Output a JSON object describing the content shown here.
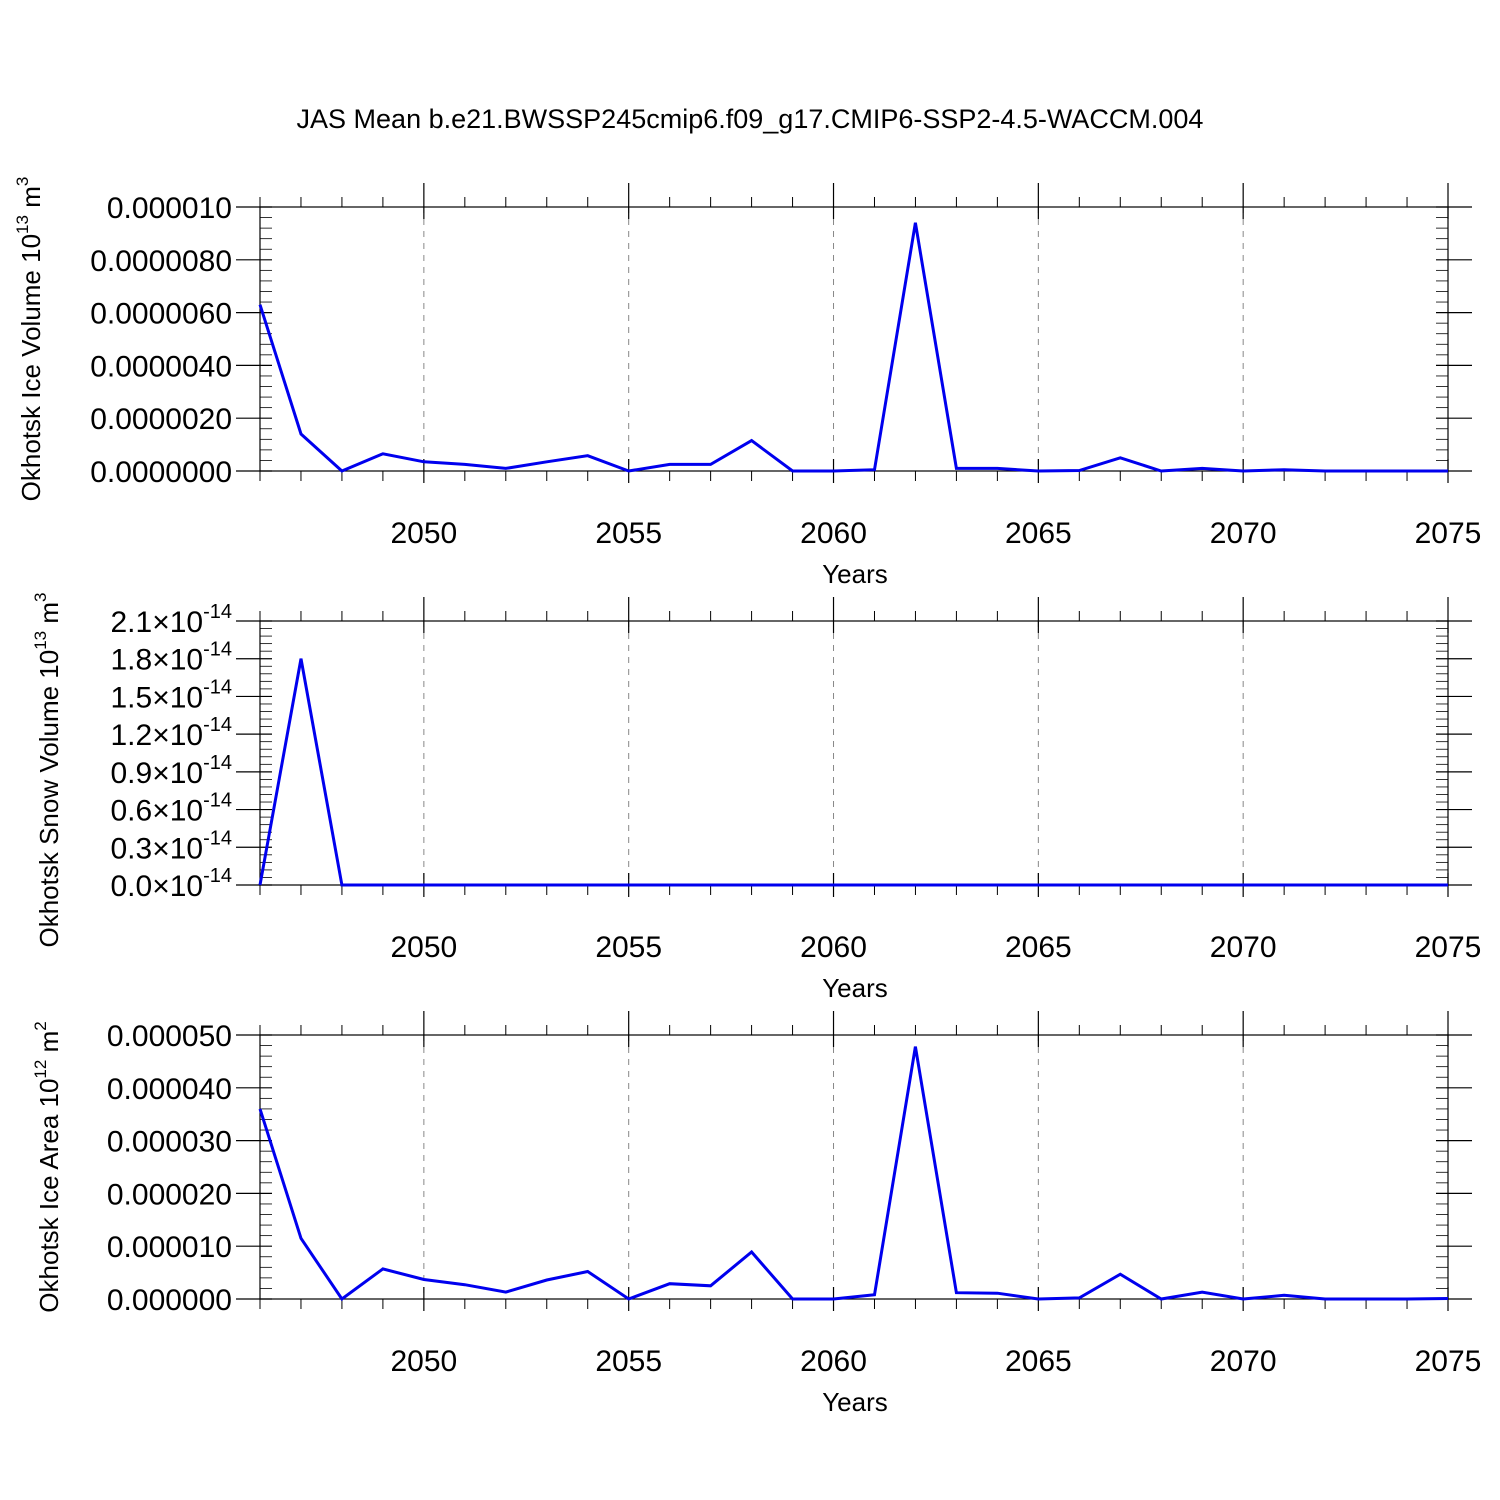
{
  "title": "JAS Mean b.e21.BWSSP245cmip6.f09_g17.CMIP6-SSP2-4.5-WACCM.004",
  "colors": {
    "line": "#0000ee",
    "axis": "#000000",
    "grid": "#888888"
  },
  "chart_data": [
    {
      "type": "line",
      "ylabel": "Okhotsk Ice Volume",
      "ylabel_unit_base": "10",
      "ylabel_unit_exp": "13",
      "ylabel_unit": "m",
      "ylabel_unit_power": "3",
      "xlabel": "Years",
      "xlim": [
        2046,
        2075
      ],
      "ylim": [
        0,
        1e-05
      ],
      "xticks": [
        2050,
        2055,
        2060,
        2065,
        2070,
        2075
      ],
      "ytick_labels": [
        "0.0000000",
        "0.0000020",
        "0.0000040",
        "0.0000060",
        "0.0000080",
        "0.000010"
      ],
      "ytick_values": [
        0,
        2e-06,
        4e-06,
        6e-06,
        8e-06,
        1e-05
      ],
      "grid": "vertical dashed at major x ticks",
      "series": [
        {
          "x": [
            2046,
            2047,
            2048,
            2049,
            2050,
            2051,
            2052,
            2053,
            2054,
            2055,
            2056,
            2057,
            2058,
            2059,
            2060,
            2061,
            2062,
            2063,
            2064,
            2065,
            2066,
            2067,
            2068,
            2069,
            2070,
            2071,
            2072,
            2073,
            2074,
            2075
          ],
          "values": [
            6.3e-06,
            1.4e-06,
            0.0,
            6.5e-07,
            3.5e-07,
            2.5e-07,
            1e-07,
            3.5e-07,
            5.8e-07,
            0.0,
            2.5e-07,
            2.5e-07,
            1.15e-06,
            0.0,
            0.0,
            5e-08,
            9.4e-06,
            1e-07,
            1e-07,
            0.0,
            2e-08,
            5e-07,
            0.0,
            1e-07,
            0.0,
            5e-08,
            0.0,
            0.0,
            0.0,
            0.0
          ]
        }
      ]
    },
    {
      "type": "line",
      "ylabel": "Okhotsk Snow Volume",
      "ylabel_unit_base": "10",
      "ylabel_unit_exp": "13",
      "ylabel_unit": "m",
      "ylabel_unit_power": "3",
      "xlabel": "Years",
      "xlim": [
        2046,
        2075
      ],
      "ylim": [
        0,
        2.1e-14
      ],
      "xticks": [
        2050,
        2055,
        2060,
        2065,
        2070,
        2075
      ],
      "ytick_mantissas": [
        "0.0",
        "0.3",
        "0.6",
        "0.9",
        "1.2",
        "1.5",
        "1.8",
        "2.1"
      ],
      "ytick_times": "×10",
      "ytick_exp": "-14",
      "ytick_values": [
        0,
        3e-15,
        6e-15,
        9e-15,
        1.2e-14,
        1.5e-14,
        1.8e-14,
        2.1e-14
      ],
      "grid": "vertical dashed at major x ticks",
      "series": [
        {
          "x": [
            2046,
            2047,
            2048,
            2049,
            2050,
            2051,
            2052,
            2053,
            2054,
            2055,
            2056,
            2057,
            2058,
            2059,
            2060,
            2061,
            2062,
            2063,
            2064,
            2065,
            2066,
            2067,
            2068,
            2069,
            2070,
            2071,
            2072,
            2073,
            2074,
            2075
          ],
          "values": [
            0,
            1.8e-14,
            0,
            0,
            0,
            0,
            0,
            0,
            0,
            0,
            0,
            0,
            0,
            0,
            0,
            0,
            0,
            0,
            0,
            0,
            0,
            0,
            0,
            0,
            0,
            0,
            0,
            0,
            0,
            0
          ]
        }
      ]
    },
    {
      "type": "line",
      "ylabel": "Okhotsk Ice Area",
      "ylabel_unit_base": "10",
      "ylabel_unit_exp": "12",
      "ylabel_unit": "m",
      "ylabel_unit_power": "2",
      "xlabel": "Years",
      "xlim": [
        2046,
        2075
      ],
      "ylim": [
        0,
        5e-05
      ],
      "xticks": [
        2050,
        2055,
        2060,
        2065,
        2070,
        2075
      ],
      "ytick_labels": [
        "0.000000",
        "0.000010",
        "0.000020",
        "0.000030",
        "0.000040",
        "0.000050"
      ],
      "ytick_values": [
        0,
        1e-05,
        2e-05,
        3e-05,
        4e-05,
        5e-05
      ],
      "grid": "vertical dashed at major x ticks",
      "series": [
        {
          "x": [
            2046,
            2047,
            2048,
            2049,
            2050,
            2051,
            2052,
            2053,
            2054,
            2055,
            2056,
            2057,
            2058,
            2059,
            2060,
            2061,
            2062,
            2063,
            2064,
            2065,
            2066,
            2067,
            2068,
            2069,
            2070,
            2071,
            2072,
            2073,
            2074,
            2075
          ],
          "values": [
            3.6e-05,
            1.15e-05,
            0.0,
            5.7e-06,
            3.7e-06,
            2.7e-06,
            1.3e-06,
            3.6e-06,
            5.2e-06,
            0.0,
            2.9e-06,
            2.5e-06,
            8.9e-06,
            0.0,
            0.0,
            8e-07,
            4.78e-05,
            1.2e-06,
            1.1e-06,
            0.0,
            2e-07,
            4.7e-06,
            0.0,
            1.3e-06,
            0.0,
            7e-07,
            0.0,
            0.0,
            0.0,
            1e-07
          ]
        }
      ]
    }
  ]
}
